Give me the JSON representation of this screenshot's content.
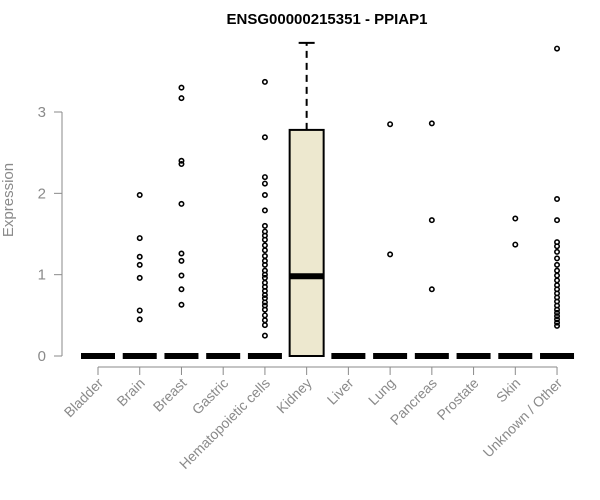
{
  "chart_data": {
    "type": "box",
    "title": "ENSG00000215351 - PPIAP1",
    "xlabel": "",
    "ylabel": "Expression",
    "ylim": [
      0,
      3.8
    ],
    "yticks": [
      0,
      1,
      2,
      3
    ],
    "box_fill": "#ede8cf",
    "categories": [
      "Bladder",
      "Brain",
      "Breast",
      "Gastric",
      "Hematopoietic cells",
      "Kidney",
      "Liver",
      "Lung",
      "Pancreas",
      "Prostate",
      "Skin",
      "Unknown / Other"
    ],
    "boxes": [
      {
        "category": "Bladder",
        "q1": 0,
        "median": 0,
        "q3": 0,
        "whisker_low": 0,
        "whisker_high": 0,
        "outliers": []
      },
      {
        "category": "Brain",
        "q1": 0,
        "median": 0,
        "q3": 0,
        "whisker_low": 0,
        "whisker_high": 0,
        "outliers": [
          1.98,
          1.45,
          1.22,
          1.12,
          0.96,
          0.56,
          0.45
        ]
      },
      {
        "category": "Breast",
        "q1": 0,
        "median": 0,
        "q3": 0,
        "whisker_low": 0,
        "whisker_high": 0,
        "outliers": [
          3.3,
          3.17,
          2.4,
          2.36,
          1.87,
          1.26,
          1.17,
          0.99,
          0.82,
          0.63
        ]
      },
      {
        "category": "Gastric",
        "q1": 0,
        "median": 0,
        "q3": 0,
        "whisker_low": 0,
        "whisker_high": 0,
        "outliers": []
      },
      {
        "category": "Hematopoietic cells",
        "q1": 0,
        "median": 0,
        "q3": 0,
        "whisker_low": 0,
        "whisker_high": 0,
        "outliers": [
          3.37,
          2.69,
          2.2,
          2.12,
          1.98,
          1.79,
          1.6,
          1.53,
          1.48,
          1.43,
          1.36,
          1.3,
          1.23,
          1.17,
          1.12,
          1.05,
          1.0,
          0.96,
          0.9,
          0.85,
          0.8,
          0.75,
          0.71,
          0.66,
          0.62,
          0.57,
          0.5,
          0.44,
          0.38,
          0.25
        ]
      },
      {
        "category": "Kidney",
        "q1": 0,
        "median": 0.98,
        "q3": 2.78,
        "whisker_low": 0,
        "whisker_high": 3.85,
        "outliers": []
      },
      {
        "category": "Liver",
        "q1": 0,
        "median": 0,
        "q3": 0,
        "whisker_low": 0,
        "whisker_high": 0,
        "outliers": []
      },
      {
        "category": "Lung",
        "q1": 0,
        "median": 0,
        "q3": 0,
        "whisker_low": 0,
        "whisker_high": 0,
        "outliers": [
          2.85,
          1.25
        ]
      },
      {
        "category": "Pancreas",
        "q1": 0,
        "median": 0,
        "q3": 0,
        "whisker_low": 0,
        "whisker_high": 0,
        "outliers": [
          2.86,
          1.67,
          0.82
        ]
      },
      {
        "category": "Prostate",
        "q1": 0,
        "median": 0,
        "q3": 0,
        "whisker_low": 0,
        "whisker_high": 0,
        "outliers": []
      },
      {
        "category": "Skin",
        "q1": 0,
        "median": 0,
        "q3": 0,
        "whisker_low": 0,
        "whisker_high": 0,
        "outliers": [
          1.69,
          1.37
        ]
      },
      {
        "category": "Unknown / Other",
        "q1": 0,
        "median": 0,
        "q3": 0,
        "whisker_low": 0,
        "whisker_high": 0,
        "outliers": [
          3.78,
          1.93,
          1.67,
          1.4,
          1.35,
          1.28,
          1.2,
          1.12,
          1.05,
          0.99,
          0.93,
          0.87,
          0.82,
          0.77,
          0.72,
          0.67,
          0.62,
          0.57,
          0.53,
          0.49,
          0.45,
          0.41,
          0.37
        ]
      }
    ]
  }
}
